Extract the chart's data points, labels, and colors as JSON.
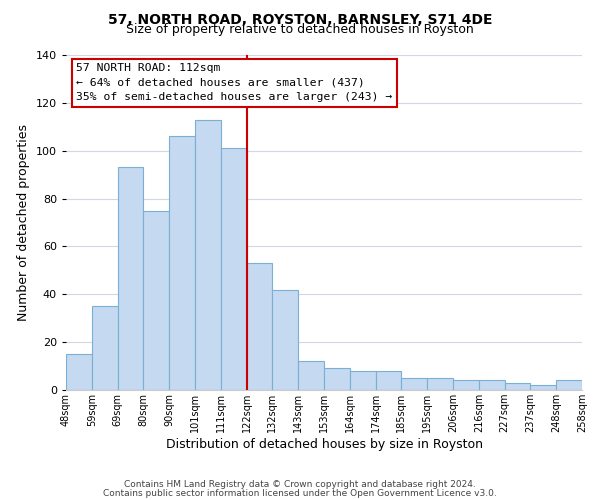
{
  "title1": "57, NORTH ROAD, ROYSTON, BARNSLEY, S71 4DE",
  "title2": "Size of property relative to detached houses in Royston",
  "xlabel": "Distribution of detached houses by size in Royston",
  "ylabel": "Number of detached properties",
  "bar_labels": [
    "48sqm",
    "59sqm",
    "69sqm",
    "80sqm",
    "90sqm",
    "101sqm",
    "111sqm",
    "122sqm",
    "132sqm",
    "143sqm",
    "153sqm",
    "164sqm",
    "174sqm",
    "185sqm",
    "195sqm",
    "206sqm",
    "216sqm",
    "227sqm",
    "237sqm",
    "248sqm",
    "258sqm"
  ],
  "bar_values": [
    15,
    35,
    93,
    75,
    106,
    113,
    101,
    53,
    42,
    12,
    9,
    8,
    8,
    5,
    5,
    4,
    4,
    3,
    2,
    4
  ],
  "bar_color": "#c5d9f1",
  "bar_edge_color": "#7bafd4",
  "vline_color": "#cc0000",
  "ylim": [
    0,
    140
  ],
  "yticks": [
    0,
    20,
    40,
    60,
    80,
    100,
    120,
    140
  ],
  "annotation_title": "57 NORTH ROAD: 112sqm",
  "annotation_line1": "← 64% of detached houses are smaller (437)",
  "annotation_line2": "35% of semi-detached houses are larger (243) →",
  "annotation_box_color": "#ffffff",
  "annotation_box_edge": "#cc0000",
  "footer1": "Contains HM Land Registry data © Crown copyright and database right 2024.",
  "footer2": "Contains public sector information licensed under the Open Government Licence v3.0.",
  "background_color": "#ffffff",
  "grid_color": "#d0d8e4"
}
